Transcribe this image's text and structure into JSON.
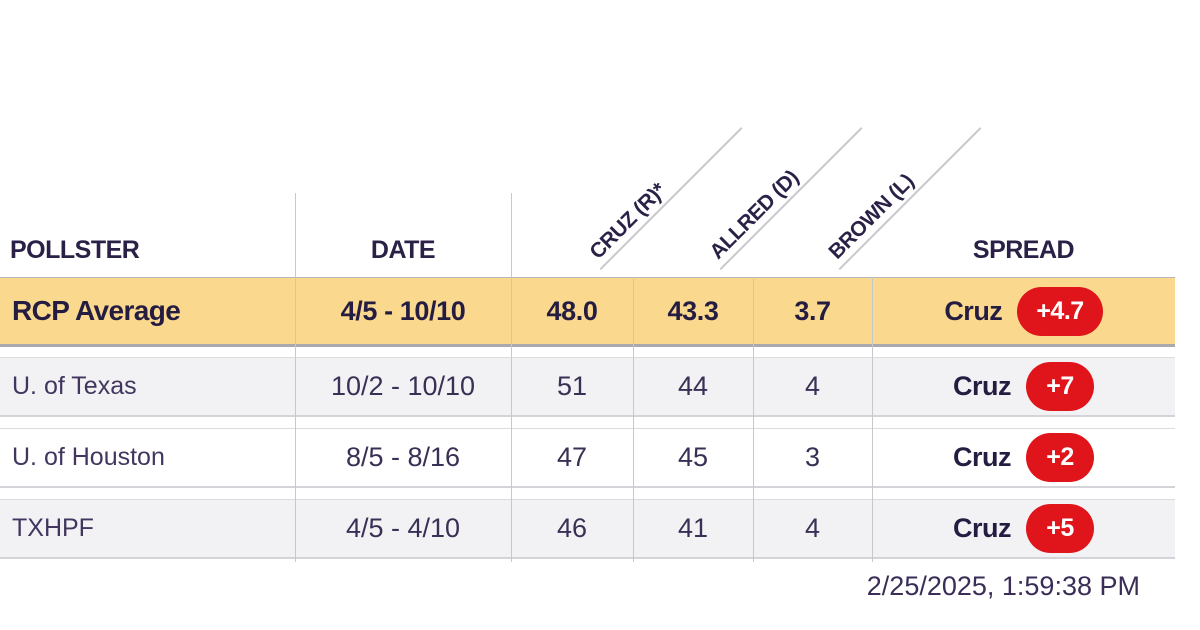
{
  "header": {
    "pollster": "POLLSTER",
    "date": "DATE",
    "spread": "SPREAD"
  },
  "candidates": [
    {
      "label": "CRUZ (R)*"
    },
    {
      "label": "ALLRED (D)"
    },
    {
      "label": "BROWN (L)"
    }
  ],
  "rows": [
    {
      "pollster": "RCP Average",
      "date": "4/5 - 10/10",
      "values": [
        "48.0",
        "43.3",
        "3.7"
      ],
      "spread": {
        "leader": "Cruz",
        "margin": "+4.7"
      }
    },
    {
      "pollster": "U. of Texas",
      "date": "10/2 - 10/10",
      "values": [
        "51",
        "44",
        "4"
      ],
      "spread": {
        "leader": "Cruz",
        "margin": "+7"
      }
    },
    {
      "pollster": "U. of Houston",
      "date": "8/5 - 8/16",
      "values": [
        "47",
        "45",
        "3"
      ],
      "spread": {
        "leader": "Cruz",
        "margin": "+2"
      }
    },
    {
      "pollster": "TXHPF",
      "date": "4/5 - 4/10",
      "values": [
        "46",
        "41",
        "4"
      ],
      "spread": {
        "leader": "Cruz",
        "margin": "+5"
      }
    }
  ],
  "footer": {
    "timestamp": "2/25/2025, 1:59:38 PM"
  },
  "colors": {
    "highlight_row": "#fad98f",
    "alt_row": "#f2f2f4",
    "badge_red": "#e0141b",
    "dark_text": "#2b2147",
    "regular_text": "#3a2f55",
    "divider": "#c7c7cc"
  },
  "chart_data": {
    "type": "table",
    "title": "Texas Senate Polls: Cruz (R)* vs Allred (D) vs Brown (L)",
    "columns": [
      "POLLSTER",
      "DATE",
      "CRUZ (R)*",
      "ALLRED (D)",
      "BROWN (L)",
      "SPREAD"
    ],
    "rows": [
      [
        "RCP Average",
        "4/5 - 10/10",
        48.0,
        43.3,
        3.7,
        "Cruz +4.7"
      ],
      [
        "U. of Texas",
        "10/2 - 10/10",
        51,
        44,
        4,
        "Cruz +7"
      ],
      [
        "U. of Houston",
        "8/5 - 8/16",
        47,
        45,
        3,
        "Cruz +2"
      ],
      [
        "TXHPF",
        "4/5 - 4/10",
        46,
        41,
        4,
        "Cruz +5"
      ]
    ]
  }
}
